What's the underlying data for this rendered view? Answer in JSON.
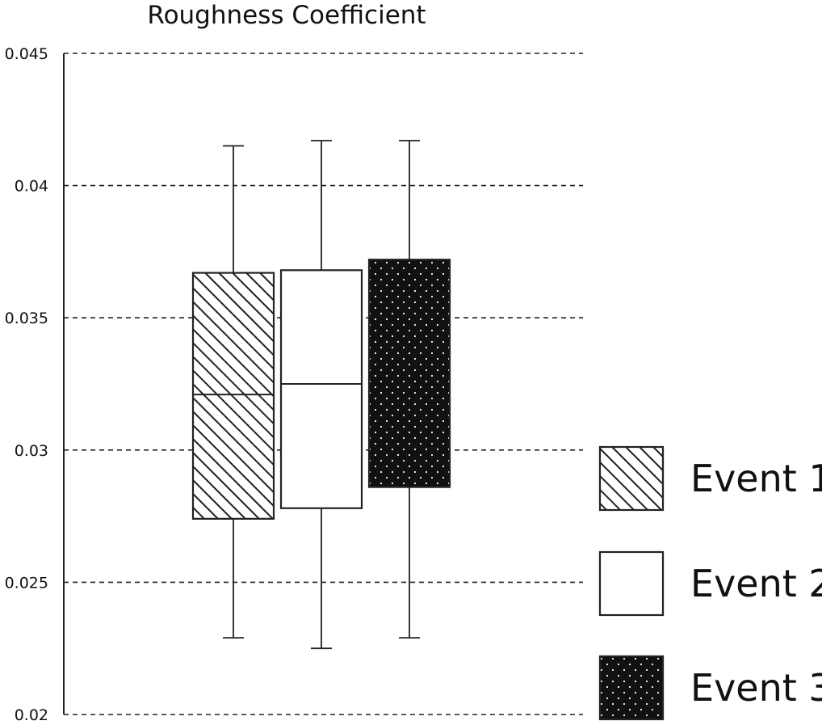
{
  "chart_data": {
    "type": "box",
    "title": "Roughness Coefficient",
    "xlabel": "",
    "ylabel": "",
    "ylim": [
      0.02,
      0.045
    ],
    "yticks": [
      "0.02",
      "0.025",
      "0.03",
      "0.035",
      "0.04",
      "0.045"
    ],
    "ytick_values": [
      0.02,
      0.025,
      0.03,
      0.035,
      0.04,
      0.045
    ],
    "grid": "horizontal dashed",
    "legend_position": "right",
    "series": [
      {
        "name": "Event 1",
        "pattern": "hatch",
        "min": 0.0229,
        "q1": 0.0274,
        "median": 0.0321,
        "q3": 0.0367,
        "max": 0.0415
      },
      {
        "name": "Event 2",
        "pattern": "none",
        "min": 0.0225,
        "q1": 0.0278,
        "median": 0.0325,
        "q3": 0.0368,
        "max": 0.0417
      },
      {
        "name": "Event 3",
        "pattern": "dots",
        "min": 0.0229,
        "q1": 0.0286,
        "median": null,
        "q3": 0.0372,
        "max": 0.0417
      }
    ]
  }
}
